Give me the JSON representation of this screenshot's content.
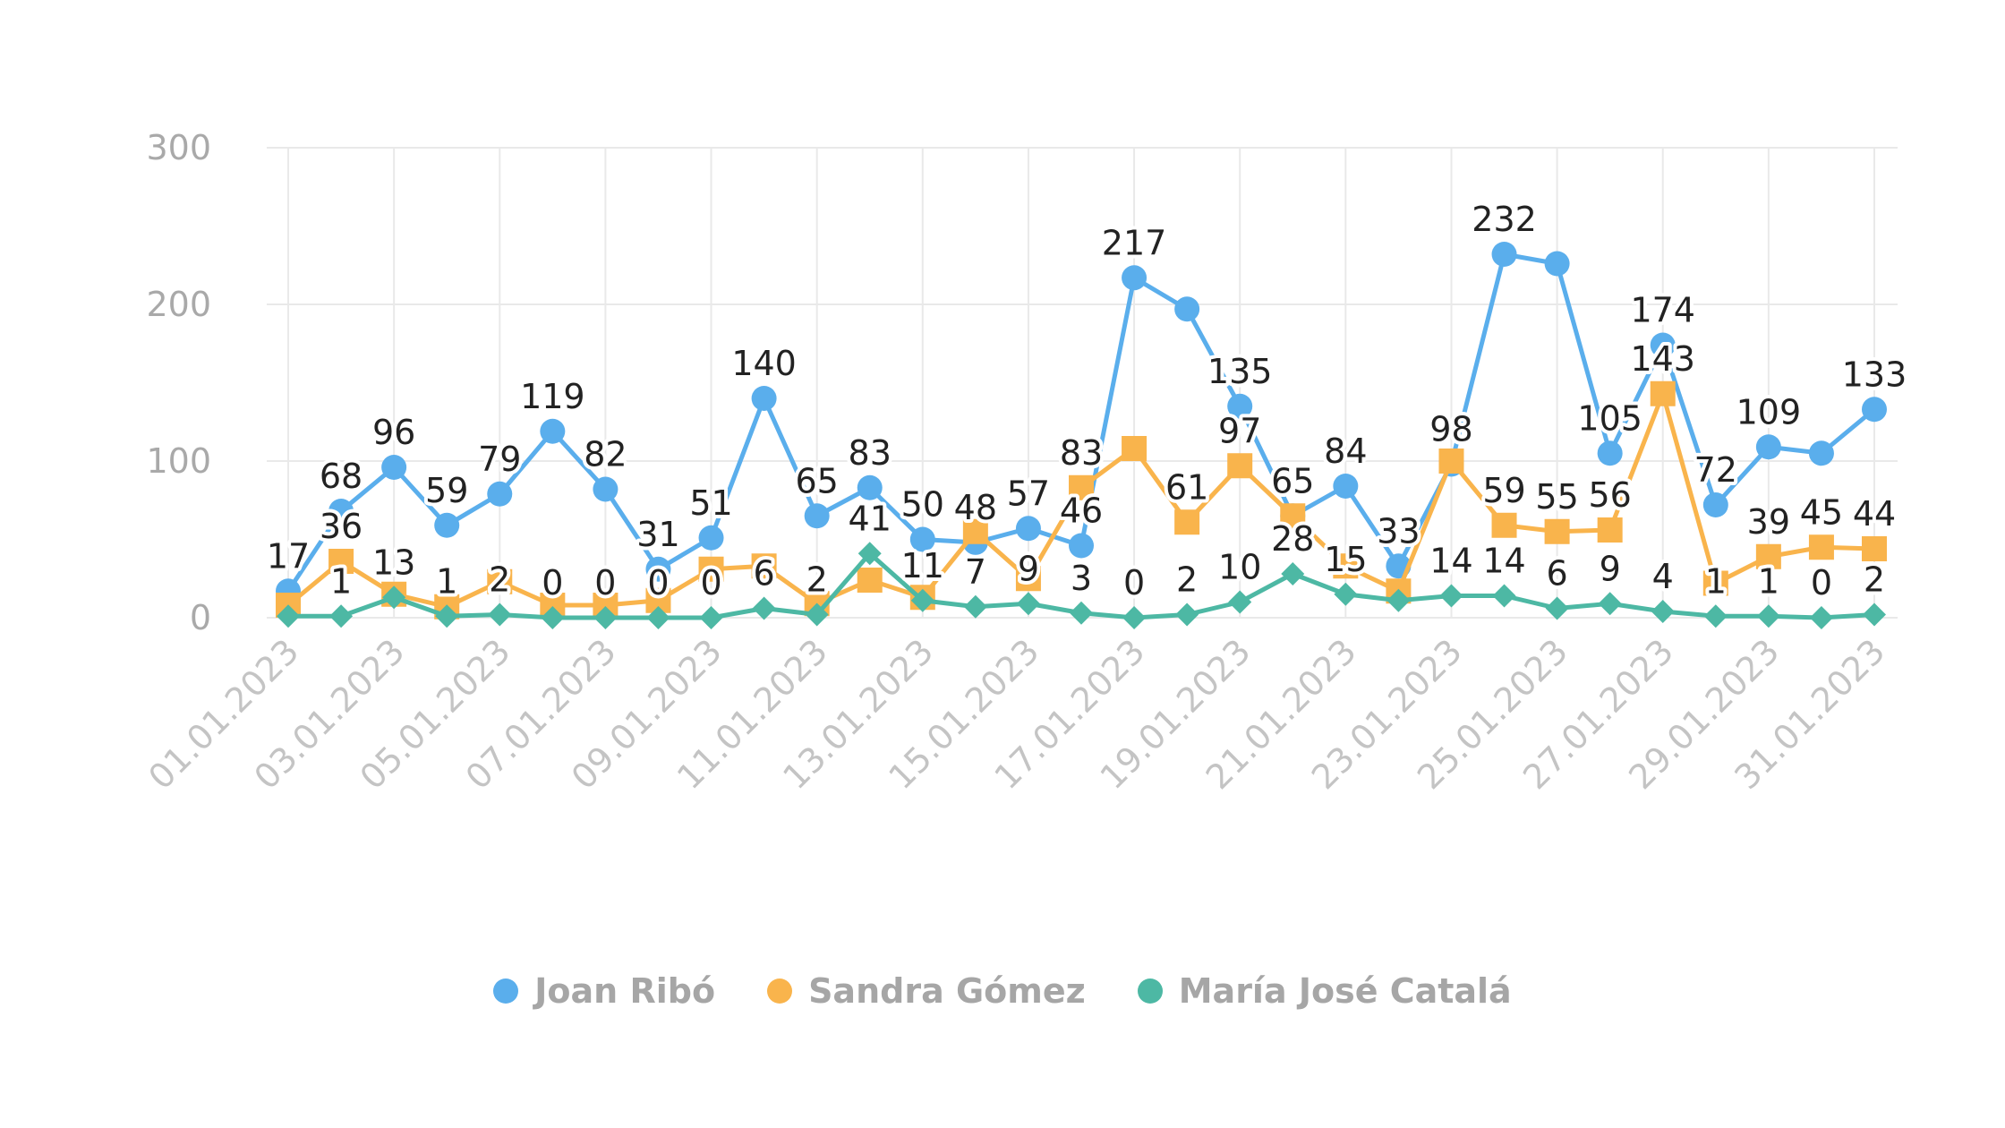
{
  "chart_data": {
    "type": "line",
    "title": "",
    "xlabel": "",
    "ylabel": "",
    "ylim": [
      0,
      300
    ],
    "yticks": [
      0,
      100,
      200,
      300
    ],
    "grid": true,
    "legend": "bottom-center",
    "x": [
      "01.01.2023",
      "02.01.2023",
      "03.01.2023",
      "04.01.2023",
      "05.01.2023",
      "06.01.2023",
      "07.01.2023",
      "08.01.2023",
      "09.01.2023",
      "10.01.2023",
      "11.01.2023",
      "12.01.2023",
      "13.01.2023",
      "14.01.2023",
      "15.01.2023",
      "16.01.2023",
      "17.01.2023",
      "18.01.2023",
      "19.01.2023",
      "20.01.2023",
      "21.01.2023",
      "22.01.2023",
      "23.01.2023",
      "24.01.2023",
      "25.01.2023",
      "26.01.2023",
      "27.01.2023",
      "28.01.2023",
      "29.01.2023",
      "30.01.2023",
      "31.01.2023"
    ],
    "xtick_labels": [
      "01.01.2023",
      "03.01.2023",
      "05.01.2023",
      "07.01.2023",
      "09.01.2023",
      "11.01.2023",
      "13.01.2023",
      "15.01.2023",
      "17.01.2023",
      "19.01.2023",
      "21.01.2023",
      "23.01.2023",
      "25.01.2023",
      "27.01.2023",
      "29.01.2023",
      "31.01.2023"
    ],
    "series": [
      {
        "name": "Joan Ribó",
        "color": "#5aaeec",
        "marker": "circle",
        "values": [
          17,
          68,
          96,
          59,
          79,
          119,
          82,
          31,
          51,
          140,
          65,
          83,
          50,
          48,
          57,
          46,
          217,
          197,
          135,
          65,
          84,
          33,
          98,
          232,
          226,
          105,
          174,
          72,
          109,
          105,
          133
        ],
        "labeled": [
          true,
          true,
          true,
          true,
          true,
          true,
          true,
          true,
          true,
          true,
          true,
          true,
          true,
          true,
          true,
          true,
          true,
          false,
          true,
          true,
          true,
          true,
          true,
          true,
          false,
          true,
          true,
          true,
          true,
          false,
          true
        ]
      },
      {
        "name": "Sandra Gómez",
        "color": "#f9b44c",
        "marker": "square",
        "values": [
          8,
          36,
          15,
          7,
          23,
          8,
          8,
          11,
          31,
          33,
          9,
          24,
          13,
          55,
          25,
          83,
          108,
          61,
          97,
          65,
          33,
          17,
          100,
          59,
          55,
          56,
          143,
          22,
          39,
          45,
          44
        ],
        "labeled": [
          false,
          true,
          false,
          false,
          false,
          false,
          false,
          false,
          false,
          false,
          false,
          false,
          false,
          false,
          false,
          true,
          false,
          true,
          true,
          true,
          false,
          false,
          false,
          true,
          true,
          true,
          true,
          false,
          true,
          true,
          true
        ]
      },
      {
        "name": "María José Catalá",
        "color": "#4db8a4",
        "marker": "diamond",
        "values": [
          1,
          1,
          13,
          1,
          2,
          0,
          0,
          0,
          0,
          6,
          2,
          41,
          11,
          7,
          9,
          3,
          0,
          2,
          10,
          28,
          15,
          11,
          14,
          14,
          6,
          9,
          4,
          1,
          1,
          0,
          2
        ],
        "labeled": [
          false,
          true,
          true,
          true,
          true,
          true,
          true,
          true,
          true,
          true,
          true,
          true,
          true,
          true,
          true,
          true,
          true,
          true,
          true,
          true,
          true,
          false,
          true,
          true,
          true,
          true,
          true,
          true,
          true,
          true,
          true
        ]
      }
    ]
  },
  "legend": {
    "items": [
      {
        "label": "Joan Ribó",
        "color": "#5aaeec"
      },
      {
        "label": "Sandra Gómez",
        "color": "#f9b44c"
      },
      {
        "label": "María José Catalá",
        "color": "#4db8a4"
      }
    ]
  }
}
